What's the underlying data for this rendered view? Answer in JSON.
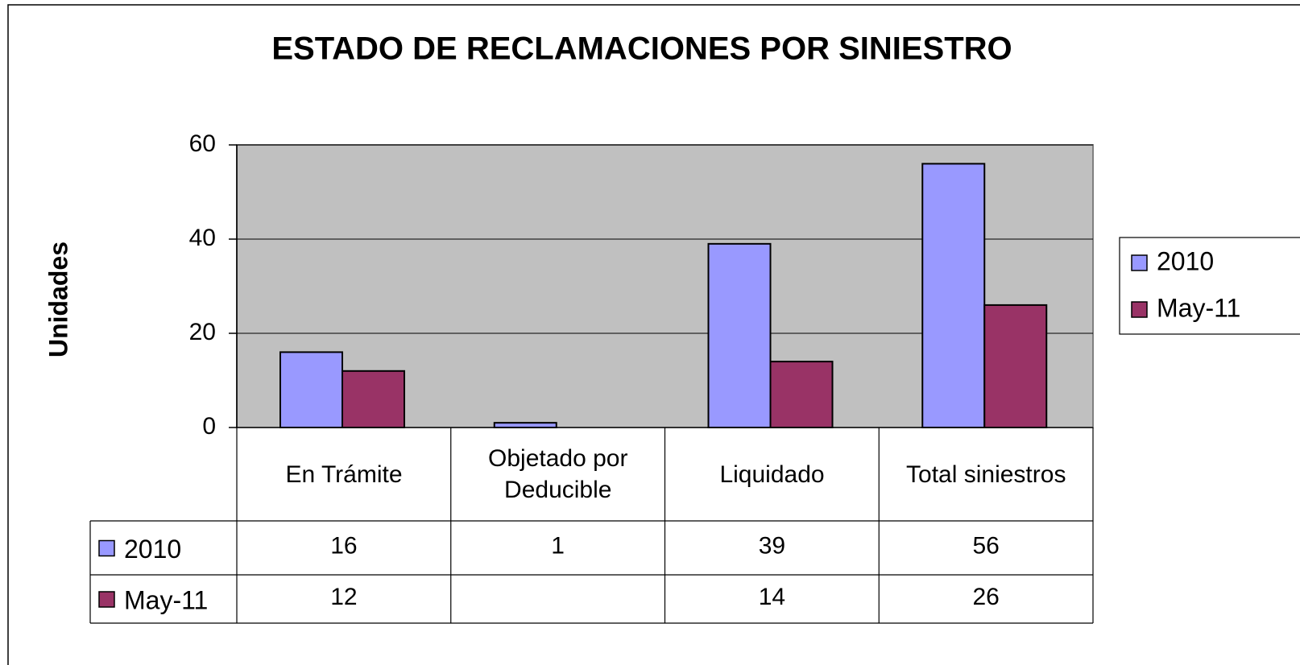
{
  "chart_data": {
    "type": "bar",
    "title": "ESTADO DE RECLAMACIONES POR SINIESTRO",
    "y_label": "Unidades",
    "categories": [
      "En Trámite",
      "Objetado por Deducible",
      "Liquidado",
      "Total siniestros"
    ],
    "series": [
      {
        "name": "2010",
        "color": "#9999ff",
        "values": [
          16,
          1,
          39,
          56
        ]
      },
      {
        "name": "May-11",
        "color": "#993366",
        "values": [
          12,
          null,
          14,
          26
        ]
      }
    ],
    "ylim": [
      0,
      60
    ],
    "yticks": [
      0,
      20,
      40,
      60
    ],
    "grid": true,
    "legend": "right",
    "data_table": true
  }
}
